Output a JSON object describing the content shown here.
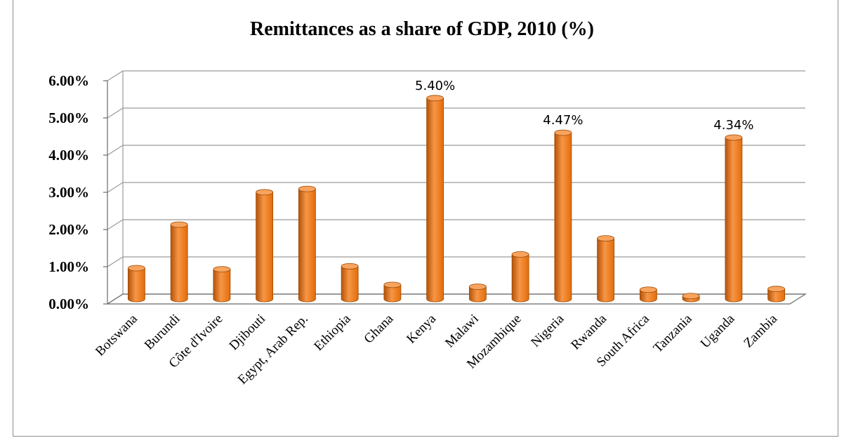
{
  "chart_data": {
    "type": "bar",
    "title": "Remittances as a share of GDP, 2010 (%)",
    "xlabel": "",
    "ylabel": "",
    "ylim": [
      0,
      6
    ],
    "yticks": [
      "0.00%",
      "1.00%",
      "2.00%",
      "3.00%",
      "4.00%",
      "5.00%",
      "6.00%"
    ],
    "categories": [
      "Botswana",
      "Burundi",
      "Côte d'Ivoire",
      "Djibouti",
      "Egypt, Arab Rep.",
      "Ethiopia",
      "Ghana",
      "Kenya",
      "Malawi",
      "Mozambique",
      "Nigeria",
      "Rwanda",
      "South Africa",
      "Tanzania",
      "Uganda",
      "Zambia"
    ],
    "values": [
      0.83,
      2.0,
      0.8,
      2.87,
      2.96,
      0.88,
      0.38,
      5.4,
      0.33,
      1.2,
      4.47,
      1.63,
      0.25,
      0.08,
      4.34,
      0.27
    ],
    "data_labels": [
      "",
      "",
      "",
      "",
      "",
      "",
      "",
      "5.40%",
      "",
      "",
      "4.47%",
      "",
      "",
      "",
      "4.34%",
      ""
    ],
    "grid": true,
    "legend": "none",
    "bar_color": "#E36C09",
    "bar_color_light": "#F79646",
    "bar_color_dark": "#B45309"
  }
}
